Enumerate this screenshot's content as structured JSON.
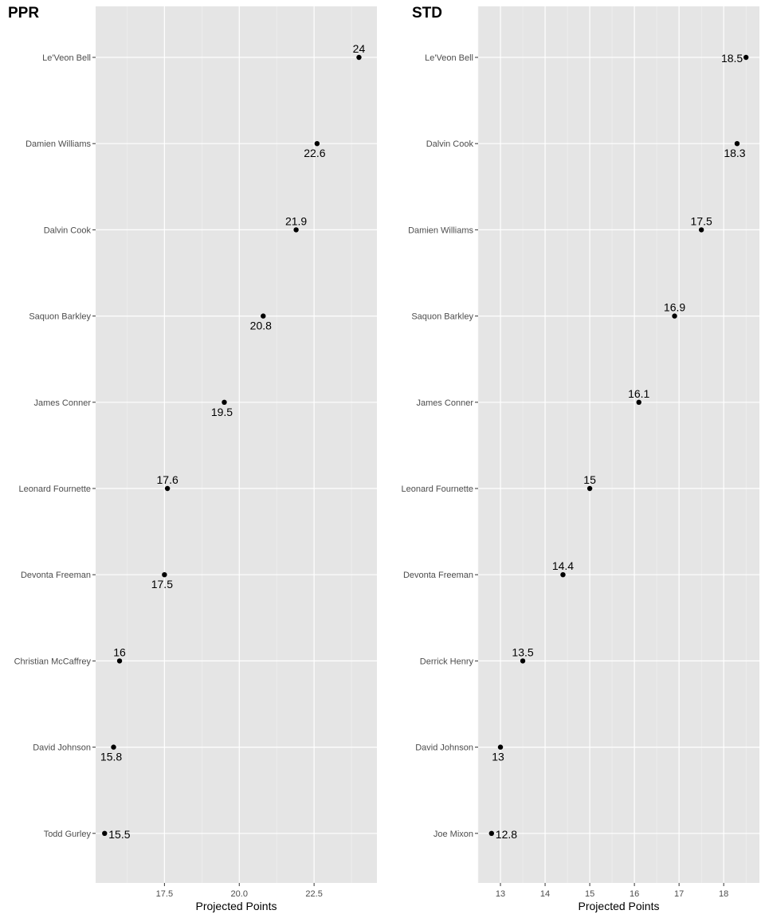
{
  "chart_data": [
    {
      "type": "scatter",
      "title": "PPR",
      "xlabel": "Projected Points",
      "ylabel": "",
      "xlim": [
        15.2,
        24.6
      ],
      "xticks": [
        17.5,
        20.0,
        22.5
      ],
      "xtick_labels": [
        "17.5",
        "20.0",
        "22.5"
      ],
      "grid": true,
      "categories": [
        "Le'Veon Bell",
        "Damien Williams",
        "Dalvin Cook",
        "Saquon Barkley",
        "James Conner",
        "Leonard Fournette",
        "Devonta Freeman",
        "Christian McCaffrey",
        "David Johnson",
        "Todd Gurley"
      ],
      "values": [
        24.0,
        22.6,
        21.9,
        20.8,
        19.5,
        17.6,
        17.5,
        16.0,
        15.8,
        15.5
      ],
      "value_labels": [
        "24",
        "22.6",
        "21.9",
        "20.8",
        "19.5",
        "17.6",
        "17.5",
        "16",
        "15.8",
        "15.5"
      ],
      "label_positions": [
        "above",
        "below",
        "above",
        "below",
        "below",
        "above",
        "below",
        "above",
        "below",
        "right"
      ]
    },
    {
      "type": "scatter",
      "title": "STD",
      "xlabel": "Projected Points",
      "ylabel": "",
      "xlim": [
        12.5,
        18.8
      ],
      "xticks": [
        13,
        14,
        15,
        16,
        17,
        18
      ],
      "xtick_labels": [
        "13",
        "14",
        "15",
        "16",
        "17",
        "18"
      ],
      "grid": true,
      "categories": [
        "Le'Veon Bell",
        "Dalvin Cook",
        "Damien Williams",
        "Saquon Barkley",
        "James Conner",
        "Leonard Fournette",
        "Devonta Freeman",
        "Derrick Henry",
        "David Johnson",
        "Joe Mixon"
      ],
      "values": [
        18.5,
        18.3,
        17.5,
        16.9,
        16.1,
        15.0,
        14.4,
        13.5,
        13.0,
        12.8
      ],
      "value_labels": [
        "18.5",
        "18.3",
        "17.5",
        "16.9",
        "16.1",
        "15",
        "14.4",
        "13.5",
        "13",
        "12.8"
      ],
      "label_positions": [
        "left",
        "below",
        "above",
        "above",
        "above",
        "above",
        "above",
        "above",
        "below",
        "right"
      ]
    }
  ]
}
